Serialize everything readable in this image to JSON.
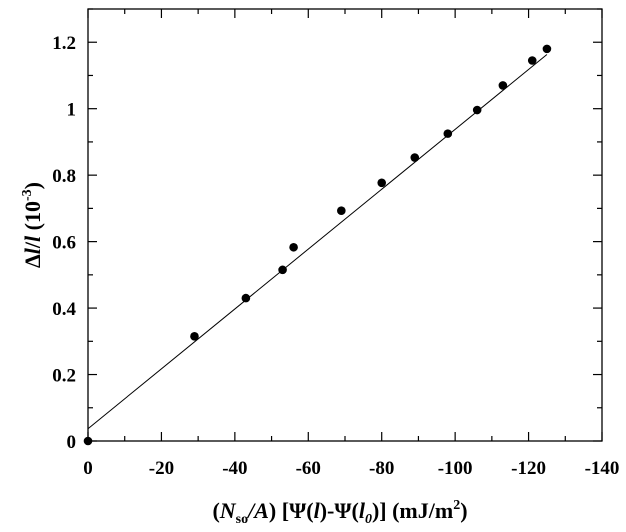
{
  "chart_data": {
    "type": "scatter",
    "x": [
      0,
      -29,
      -43,
      -53,
      -56,
      -69,
      -80,
      -89,
      -98,
      -106,
      -113,
      -121,
      -125
    ],
    "y": [
      0.0,
      0.315,
      0.43,
      0.515,
      0.583,
      0.693,
      0.777,
      0.853,
      0.925,
      0.996,
      1.07,
      1.145,
      1.18
    ],
    "fit_line": {
      "x": [
        0,
        -125
      ],
      "y": [
        0.037,
        1.163
      ]
    },
    "xlim": [
      0,
      -140
    ],
    "ylim": [
      0,
      1.3
    ],
    "x_ticks": [
      0,
      -20,
      -40,
      -60,
      -80,
      -100,
      -120,
      -140
    ],
    "x_tick_labels": [
      "0",
      "-20",
      "-40",
      "-60",
      "-80",
      "-100",
      "-120",
      "-140"
    ],
    "y_ticks": [
      0,
      0.2,
      0.4,
      0.6,
      0.8,
      1.0,
      1.2
    ],
    "y_tick_labels": [
      "0",
      "0.2",
      "0.4",
      "0.6",
      "0.8",
      "1",
      "1.2"
    ],
    "xlabel": {
      "p1": "(",
      "N": "N",
      "so": "so",
      "slashA": "/A",
      "p2": ") ",
      "psi_open": "[Ψ(",
      "l": "l",
      "mid": ")-Ψ(",
      "l0": "l",
      "zero": "0",
      "close": ")]",
      "units": "  (mJ/m",
      "sq": "2",
      "units_close": ")"
    },
    "ylabel": {
      "delta": "Δ",
      "l1": "l",
      "slash": "/",
      "l2": "l",
      "paren": "  (10",
      "exp": "-3",
      "paren_close": ")"
    },
    "grid": false,
    "colors": {
      "marker": "#000000",
      "line": "#000000",
      "axis": "#000000"
    }
  }
}
